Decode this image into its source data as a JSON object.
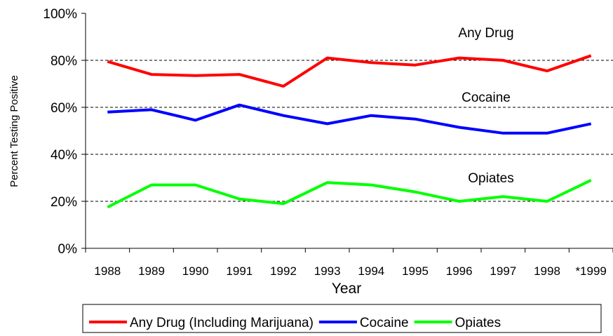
{
  "chart_data": {
    "type": "line",
    "title": "",
    "xlabel": "Year",
    "ylabel": "Percent Testing Positive",
    "categories": [
      "1988",
      "1989",
      "1990",
      "1991",
      "1992",
      "1993",
      "1994",
      "1995",
      "1996",
      "1997",
      "1998",
      "*1999"
    ],
    "ylim": [
      0,
      100
    ],
    "yticks": [
      "0%",
      "20%",
      "40%",
      "60%",
      "80%",
      "100%"
    ],
    "grid": "horizontal dashed at 20%, 40%, 60%, 80%",
    "series": [
      {
        "name": "Any Drug (Including Marijuana)",
        "color": "#ff0000",
        "values": [
          79.5,
          74,
          73.5,
          74,
          69,
          81,
          79,
          78,
          81,
          80,
          75.5,
          82
        ]
      },
      {
        "name": "Cocaine",
        "color": "#0000ff",
        "values": [
          58,
          59,
          54.5,
          61,
          56.5,
          53,
          56.5,
          55,
          51.5,
          49,
          49,
          53
        ]
      },
      {
        "name": "Opiates",
        "color": "#00ff00",
        "values": [
          17.5,
          27,
          27,
          21,
          19,
          28,
          27,
          24,
          20,
          22,
          20,
          29
        ]
      }
    ],
    "annotations": [
      {
        "text": "Any Drug",
        "series": 0
      },
      {
        "text": "Cocaine",
        "series": 1
      },
      {
        "text": "Opiates",
        "series": 2
      }
    ],
    "legend": {
      "placement": "bottom",
      "entries": [
        "Any Drug (Including Marijuana)",
        "Cocaine",
        "Opiates"
      ]
    }
  }
}
